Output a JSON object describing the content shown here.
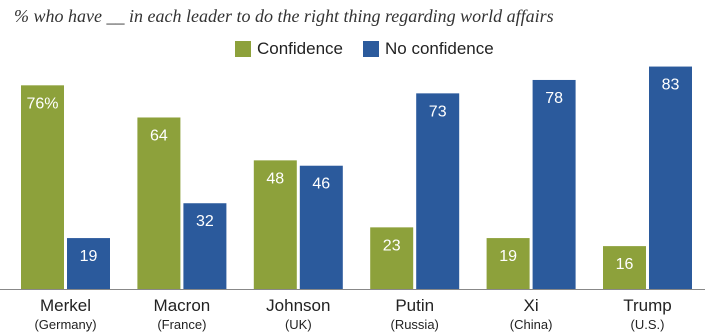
{
  "chart_data": {
    "type": "bar",
    "subtitle": "% who have __ in each leader to do the right thing regarding world affairs",
    "categories": [
      "Merkel",
      "Macron",
      "Johnson",
      "Putin",
      "Xi",
      "Trump"
    ],
    "category_subs": [
      "(Germany)",
      "(France)",
      "(UK)",
      "(Russia)",
      "(China)",
      "(U.S.)"
    ],
    "series": [
      {
        "name": "Confidence",
        "values": [
          76,
          64,
          48,
          23,
          19,
          16
        ],
        "labels": [
          "76%",
          "64",
          "48",
          "23",
          "19",
          "16"
        ]
      },
      {
        "name": "No confidence",
        "values": [
          19,
          32,
          46,
          73,
          78,
          83
        ],
        "labels": [
          "19",
          "32",
          "46",
          "73",
          "78",
          "83"
        ]
      }
    ],
    "colors": {
      "Confidence": "#8da13b",
      "No confidence": "#2b5a9c"
    },
    "ylim": [
      0,
      100
    ],
    "grid": false,
    "legend_position": "top-center"
  }
}
